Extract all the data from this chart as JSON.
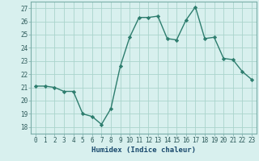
{
  "x": [
    0,
    1,
    2,
    3,
    4,
    5,
    6,
    7,
    8,
    9,
    10,
    11,
    12,
    13,
    14,
    15,
    16,
    17,
    18,
    19,
    20,
    21,
    22,
    23
  ],
  "y": [
    21.1,
    21.1,
    21.0,
    20.7,
    20.7,
    19.0,
    18.8,
    18.2,
    19.4,
    22.6,
    24.8,
    26.3,
    26.3,
    26.4,
    24.7,
    24.6,
    26.1,
    27.1,
    24.7,
    24.8,
    23.2,
    23.1,
    22.2,
    21.6
  ],
  "line_color": "#2d7d6e",
  "marker_color": "#2d7d6e",
  "bg_color": "#d8f0ee",
  "grid_color": "#aad4cc",
  "xlabel": "Humidex (Indice chaleur)",
  "ylim": [
    17.5,
    27.5
  ],
  "xlim": [
    -0.5,
    23.5
  ],
  "yticks": [
    18,
    19,
    20,
    21,
    22,
    23,
    24,
    25,
    26,
    27
  ],
  "xticks": [
    0,
    1,
    2,
    3,
    4,
    5,
    6,
    7,
    8,
    9,
    10,
    11,
    12,
    13,
    14,
    15,
    16,
    17,
    18,
    19,
    20,
    21,
    22,
    23
  ],
  "tick_fontsize": 5.5,
  "label_fontsize": 6.5,
  "label_color": "#1a4a6e"
}
